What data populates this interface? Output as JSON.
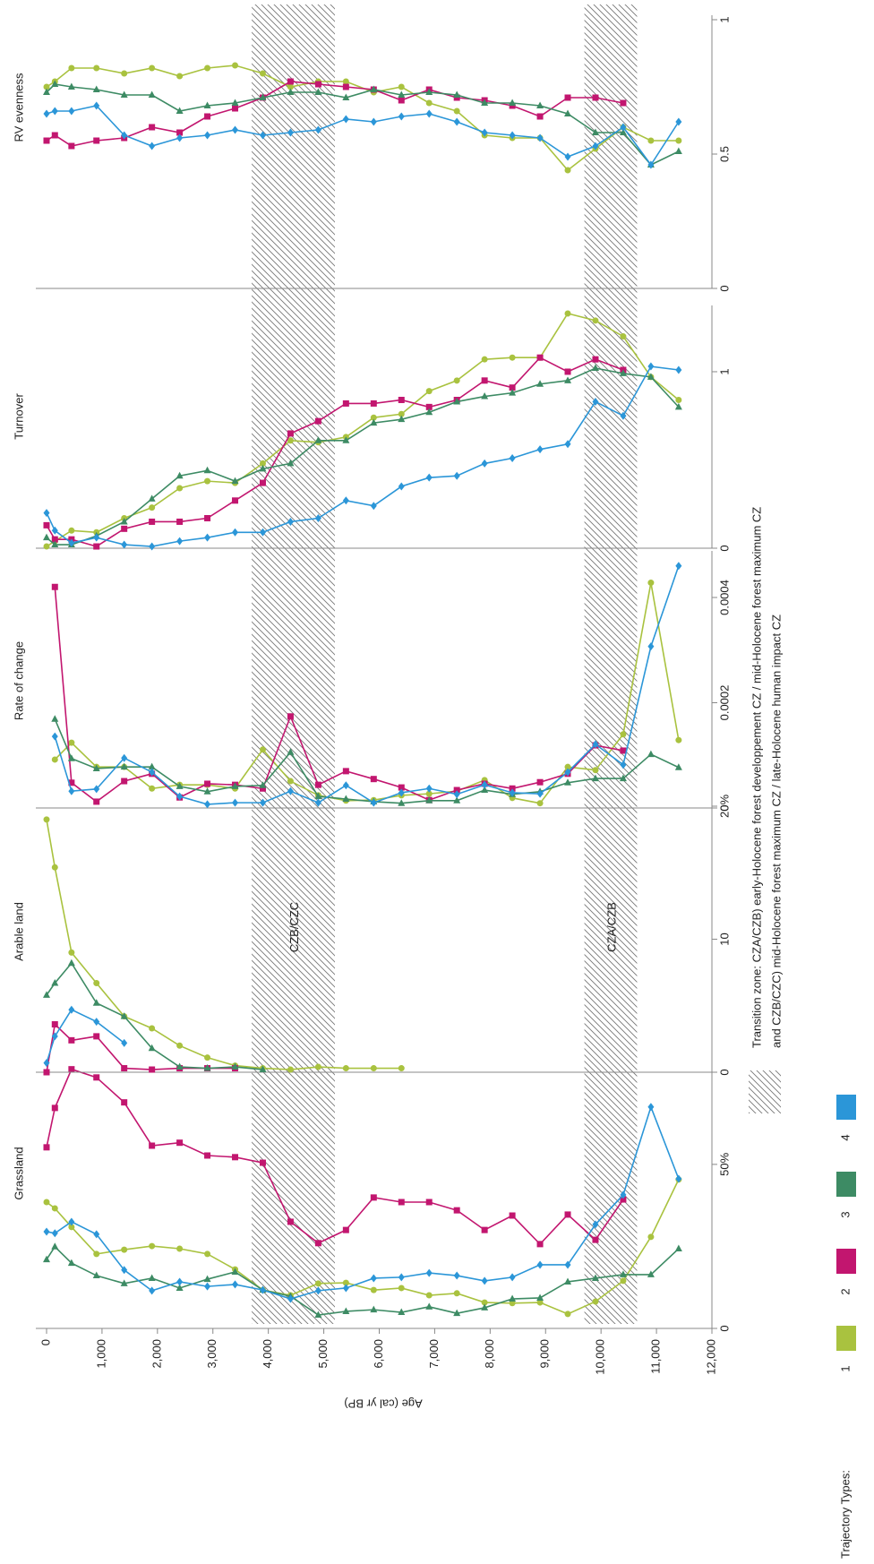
{
  "chart_data": [
    {
      "type": "line",
      "title": "Grassland",
      "xlabel": "Age (cal yr BP)",
      "xlim": [
        0,
        12000
      ],
      "xticks": [
        0,
        {
          "value": 1000,
          "label": "1,000"
        },
        {
          "value": 2000,
          "label": "2,000"
        },
        {
          "value": 3000,
          "label": "3,000"
        },
        {
          "value": 4000,
          "label": "4,000"
        },
        {
          "value": 5000,
          "label": "5,000"
        },
        {
          "value": 6000,
          "label": "6,000"
        },
        {
          "value": 7000,
          "label": "7,000"
        },
        {
          "value": 8000,
          "label": "8,000"
        },
        {
          "value": 9000,
          "label": "9,000"
        },
        {
          "value": 10000,
          "label": "10,000"
        },
        {
          "value": 11000,
          "label": "11,000"
        },
        {
          "value": 12000,
          "label": "12,000"
        }
      ],
      "x": [
        0,
        150,
        450,
        900,
        1400,
        1900,
        2400,
        2900,
        3400,
        3900,
        4400,
        4900,
        5400,
        5900,
        6400,
        6900,
        7400,
        7900,
        8400,
        8900,
        9400,
        9900,
        10400,
        10900,
        11400
      ],
      "ylim": [
        0,
        80
      ],
      "yticks": [
        0,
        {
          "value": 50,
          "label": "50%"
        }
      ],
      "series": [
        {
          "name": "1",
          "color": "#a9c23f",
          "values": [
            38.5,
            36.6,
            30.9,
            22.7,
            24,
            25.1,
            24.3,
            22.7,
            18,
            11.7,
            10.1,
            13.7,
            13.9,
            11.7,
            12.3,
            10.1,
            10.7,
            7.9,
            7.7,
            7.9,
            4.4,
            8.2,
            14.5,
            27.9,
            45.4
          ]
        },
        {
          "name": "2",
          "color": "#c2166f",
          "values": [
            55.2,
            67.2,
            79,
            76.5,
            68.9,
            55.7,
            56.6,
            52.7,
            52.2,
            50.5,
            32.5,
            26,
            30,
            39.9,
            38.5,
            38.5,
            36,
            30,
            34.4,
            25.7,
            34.7,
            27,
            39.3,
            null,
            null
          ]
        },
        {
          "name": "3",
          "color": "#3d8b64",
          "values": [
            21,
            24.9,
            19.9,
            16.1,
            13.7,
            15.3,
            12.3,
            15,
            17.2,
            11.7,
            9.8,
            4.1,
            5.2,
            5.7,
            4.9,
            6.6,
            4.6,
            6.3,
            9,
            9.3,
            14.2,
            15.3,
            16.4,
            16.4,
            24.3
          ]
        },
        {
          "name": "4",
          "color": "#2b96d8",
          "values": [
            29.5,
            29,
            32.5,
            28.7,
            17.8,
            11.5,
            14.2,
            12.8,
            13.4,
            11.7,
            9,
            11.5,
            12.3,
            15.3,
            15.6,
            16.9,
            16.1,
            14.5,
            15.6,
            19.4,
            19.4,
            31.7,
            40.7,
            67.5,
            45.6
          ]
        }
      ]
    },
    {
      "type": "line",
      "title": "Arable land",
      "x": [
        0,
        150,
        450,
        900,
        1400,
        1900,
        2400,
        2900,
        3400,
        3900,
        4400,
        4900,
        5400,
        5900,
        6400,
        6900,
        7400,
        7900,
        8400,
        8900,
        9400,
        9900,
        10400,
        10900,
        11400
      ],
      "ylim": [
        0,
        20
      ],
      "yticks": [
        0,
        10,
        {
          "value": 20,
          "label": "20%"
        }
      ],
      "series": [
        {
          "values": [
            19,
            15.4,
            9,
            6.7,
            4.2,
            3.3,
            2,
            1.1,
            0.5,
            0.3,
            0.2,
            0.4,
            0.3,
            0.3,
            0.3,
            null,
            null,
            null,
            null,
            null,
            null,
            null,
            null,
            null,
            null
          ]
        },
        {
          "values": [
            0,
            3.6,
            2.4,
            2.7,
            0.3,
            0.2,
            0.3,
            0.3,
            0.3,
            null,
            null,
            null,
            null,
            null,
            null,
            null,
            null,
            null,
            null,
            null,
            null,
            null,
            null,
            null,
            null
          ]
        },
        {
          "values": [
            5.8,
            6.7,
            8.2,
            5.2,
            4.2,
            1.8,
            0.4,
            0.3,
            0.4,
            0.2,
            null,
            null,
            null,
            null,
            null,
            null,
            null,
            null,
            null,
            null,
            null,
            null,
            null,
            null,
            null
          ]
        },
        {
          "values": [
            0.7,
            2.7,
            4.7,
            3.8,
            2.2,
            null,
            null,
            null,
            null,
            null,
            null,
            null,
            null,
            null,
            null,
            null,
            null,
            null,
            null,
            null,
            null,
            null,
            null,
            null,
            null
          ]
        }
      ]
    },
    {
      "type": "line",
      "title": "Rate of change",
      "x": [
        0,
        150,
        450,
        900,
        1400,
        1900,
        2400,
        2900,
        3400,
        3900,
        4400,
        4900,
        5400,
        5900,
        6400,
        6900,
        7400,
        7900,
        8400,
        8900,
        9400,
        9900,
        10400,
        10900,
        11400
      ],
      "ylim": [
        0,
        0.00048
      ],
      "yticks": [
        0,
        0.0002,
        0.0004
      ],
      "series": [
        {
          "values": [
            null,
            9.2e-05,
            0.000124,
            7.8e-05,
            7.8e-05,
            3.7e-05,
            4.4e-05,
            4.4e-05,
            3.7e-05,
            0.000111,
            5.1e-05,
            2.4e-05,
            1.4e-05,
            1.5e-05,
            2.4e-05,
            2.7e-05,
            3.2e-05,
            5.3e-05,
            1.9e-05,
            9e-06,
            7.8e-05,
            7.2e-05,
            0.00014,
            0.000428,
            0.000129
          ]
        },
        {
          "values": [
            null,
            0.00042,
            4.8e-05,
            1.2e-05,
            5.1e-05,
            6.5e-05,
            2e-05,
            4.6e-05,
            4.4e-05,
            3.7e-05,
            0.000174,
            4.4e-05,
            7e-05,
            5.5e-05,
            3.9e-05,
            1.5e-05,
            3.4e-05,
            4.6e-05,
            3.7e-05,
            4.9e-05,
            6.5e-05,
            0.000119,
            0.000109,
            null,
            null
          ]
        },
        {
          "values": [
            null,
            0.000169,
            9.4e-05,
            7.5e-05,
            7.8e-05,
            7.8e-05,
            4.1e-05,
            3.1e-05,
            4.1e-05,
            4.3e-05,
            0.000106,
            2.2e-05,
            1.7e-05,
            1.2e-05,
            9e-06,
            1.4e-05,
            1.4e-05,
            3.4e-05,
            2.6e-05,
            3.1e-05,
            4.8e-05,
            5.6e-05,
            5.6e-05,
            0.000102,
            7.7e-05
          ]
        },
        {
          "values": [
            null,
            0.000136,
            3.2e-05,
            3.6e-05,
            9.5e-05,
            6.8e-05,
            2.2e-05,
            7e-06,
            1e-05,
            1e-05,
            3.2e-05,
            1e-05,
            4.3e-05,
            1e-05,
            2.9e-05,
            3.7e-05,
            2.6e-05,
            4.4e-05,
            2.9e-05,
            2.7e-05,
            6.8e-05,
            0.000121,
            8.2e-05,
            0.000307,
            0.00046
          ]
        }
      ]
    },
    {
      "type": "line",
      "title": "Turnover",
      "x": [
        0,
        150,
        450,
        900,
        1400,
        1900,
        2400,
        2900,
        3400,
        3900,
        4400,
        4900,
        5400,
        5900,
        6400,
        6900,
        7400,
        7900,
        8400,
        8900,
        9400,
        9900,
        10400,
        10900,
        11400
      ],
      "ylim": [
        0,
        1.35
      ],
      "yticks": [
        0,
        1
      ],
      "series": [
        {
          "values": [
            0.01,
            0.04,
            0.1,
            0.09,
            0.17,
            0.23,
            0.34,
            0.38,
            0.37,
            0.48,
            0.61,
            0.6,
            0.63,
            0.74,
            0.76,
            0.89,
            0.95,
            1.07,
            1.08,
            1.08,
            1.33,
            1.29,
            1.2,
            0.97,
            0.84
          ]
        },
        {
          "values": [
            0.13,
            0.05,
            0.05,
            0.01,
            0.11,
            0.15,
            0.15,
            0.17,
            0.27,
            0.37,
            0.65,
            0.72,
            0.82,
            0.82,
            0.84,
            0.8,
            0.84,
            0.95,
            0.91,
            1.08,
            1,
            1.07,
            1.01,
            null,
            null
          ]
        },
        {
          "values": [
            0.06,
            0.02,
            0.02,
            0.07,
            0.15,
            0.28,
            0.41,
            0.44,
            0.38,
            0.45,
            0.48,
            0.61,
            0.61,
            0.71,
            0.73,
            0.77,
            0.83,
            0.86,
            0.88,
            0.93,
            0.95,
            1.02,
            0.99,
            0.97,
            0.8
          ]
        },
        {
          "values": [
            0.2,
            0.1,
            0.03,
            0.06,
            0.02,
            0.01,
            0.04,
            0.06,
            0.09,
            0.09,
            0.15,
            0.17,
            0.27,
            0.24,
            0.35,
            0.4,
            0.41,
            0.48,
            0.51,
            0.56,
            0.59,
            0.83,
            0.75,
            1.03,
            1.01
          ]
        }
      ]
    },
    {
      "type": "line",
      "title": "RV evenness",
      "x": [
        0,
        150,
        450,
        900,
        1400,
        1900,
        2400,
        2900,
        3400,
        3900,
        4400,
        4900,
        5400,
        5900,
        6400,
        6900,
        7400,
        7900,
        8400,
        8900,
        9400,
        9900,
        10400,
        10900,
        11400
      ],
      "ylim": [
        0,
        1
      ],
      "yticks": [
        0,
        0.5,
        1
      ],
      "series": [
        {
          "values": [
            0.75,
            0.77,
            0.82,
            0.82,
            0.8,
            0.82,
            0.79,
            0.82,
            0.83,
            0.8,
            0.75,
            0.77,
            0.77,
            0.73,
            0.75,
            0.69,
            0.66,
            0.57,
            0.56,
            0.56,
            0.44,
            0.52,
            0.6,
            0.55,
            0.55
          ]
        },
        {
          "values": [
            0.55,
            0.57,
            0.53,
            0.55,
            0.56,
            0.6,
            0.58,
            0.64,
            0.67,
            0.71,
            0.77,
            0.76,
            0.75,
            0.74,
            0.7,
            0.74,
            0.71,
            0.7,
            0.68,
            0.64,
            0.71,
            0.71,
            0.69,
            null,
            null
          ]
        },
        {
          "values": [
            0.73,
            0.76,
            0.75,
            0.74,
            0.72,
            0.72,
            0.66,
            0.68,
            0.69,
            0.71,
            0.73,
            0.73,
            0.71,
            0.74,
            0.72,
            0.73,
            0.72,
            0.69,
            0.69,
            0.68,
            0.65,
            0.58,
            0.58,
            0.46,
            0.51
          ]
        },
        {
          "values": [
            0.65,
            0.66,
            0.66,
            0.68,
            0.57,
            0.53,
            0.56,
            0.57,
            0.59,
            0.57,
            0.58,
            0.59,
            0.63,
            0.62,
            0.64,
            0.65,
            0.62,
            0.58,
            0.57,
            0.56,
            0.49,
            0.53,
            0.6,
            0.46,
            0.62
          ]
        }
      ]
    }
  ],
  "legend": {
    "title": "Trajectory Types:"
  },
  "annotations": {
    "zones": [
      {
        "range": [
          3700,
          5200
        ],
        "label": "CZB/CZC"
      },
      {
        "range": [
          9700,
          10650
        ],
        "label": "CZA/CZB"
      }
    ],
    "zone_note": [
      "Transition zone: CZA/CZB) early-Holocene forest developpement CZ / mid-Holocene forest maximum CZ",
      "and CZB/CZC) mid-Holocene forest maximum CZ / late-Holocene human impact CZ"
    ]
  }
}
